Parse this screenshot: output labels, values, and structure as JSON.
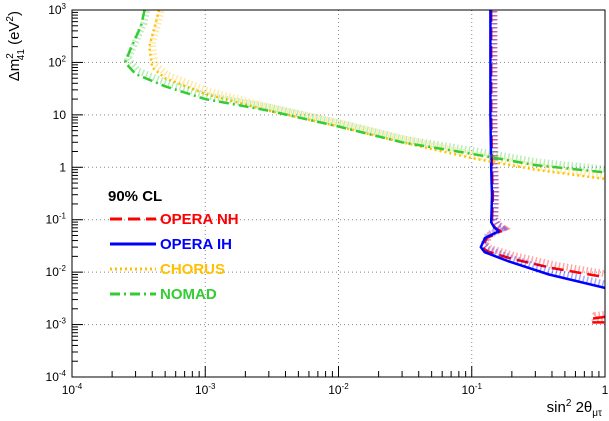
{
  "chart_data": {
    "type": "line",
    "xlabel": "sin² 2θμτ",
    "xlabel_parts": {
      "base": "sin",
      "sup": "2",
      "mid": " 2θ",
      "sub": "μτ"
    },
    "ylabel": "Δm²41 (eV²)",
    "ylabel_parts": {
      "base": "Δm",
      "sup": "2",
      "sub": "41",
      "unit": " (eV",
      "unit_sup": "2",
      "close": ")"
    },
    "xscale": "log",
    "yscale": "log",
    "xlim": [
      0.0001,
      1
    ],
    "ylim": [
      0.0001,
      1000
    ],
    "grid": true,
    "x_ticks": [
      {
        "value": 0.0001,
        "base": "10",
        "exp": "-4"
      },
      {
        "value": 0.001,
        "base": "10",
        "exp": "-3"
      },
      {
        "value": 0.01,
        "base": "10",
        "exp": "-2"
      },
      {
        "value": 0.1,
        "base": "10",
        "exp": "-1"
      },
      {
        "value": 1,
        "base": "1",
        "exp": ""
      }
    ],
    "y_ticks": [
      {
        "value": 0.0001,
        "base": "10",
        "exp": "-4"
      },
      {
        "value": 0.001,
        "base": "10",
        "exp": "-3"
      },
      {
        "value": 0.01,
        "base": "10",
        "exp": "-2"
      },
      {
        "value": 0.1,
        "base": "10",
        "exp": "-1"
      },
      {
        "value": 1,
        "base": "1",
        "exp": ""
      },
      {
        "value": 10,
        "base": "10",
        "exp": ""
      },
      {
        "value": 100,
        "base": "10",
        "exp": "2"
      },
      {
        "value": 1000,
        "base": "10",
        "exp": "3"
      }
    ],
    "legend": {
      "title": "90% CL",
      "placement": "middle-left",
      "entries": [
        {
          "label": "OPERA NH",
          "color": "#ff0000",
          "style": "dashed"
        },
        {
          "label": "OPERA IH",
          "color": "#0000ff",
          "style": "solid"
        },
        {
          "label": "CHORUS",
          "color": "#ffc000",
          "style": "dotted"
        },
        {
          "label": "NOMAD",
          "color": "#33cc33",
          "style": "dashdot"
        }
      ]
    },
    "series": [
      {
        "name": "OPERA NH",
        "color": "#ff0000",
        "style": "dashed",
        "x": [
          0.14,
          0.14,
          0.14,
          0.141,
          0.142,
          0.143,
          0.144,
          0.143,
          0.142,
          0.15,
          0.165,
          0.13,
          0.12,
          0.13,
          0.2,
          0.4,
          1.0
        ],
        "y": [
          1000,
          100,
          10,
          3,
          1,
          0.5,
          0.3,
          0.15,
          0.09,
          0.07,
          0.06,
          0.045,
          0.03,
          0.025,
          0.018,
          0.012,
          0.008
        ]
      },
      {
        "name": "OPERA NH (high Δm² island)",
        "color": "#ff0000",
        "style": "dashed",
        "x": [
          1.0,
          0.8,
          0.78,
          0.8,
          1.0
        ],
        "y": [
          0.0014,
          0.0013,
          0.0012,
          0.0011,
          0.0011
        ]
      },
      {
        "name": "OPERA IH",
        "color": "#0000ff",
        "style": "solid",
        "x": [
          0.138,
          0.138,
          0.138,
          0.139,
          0.14,
          0.141,
          0.142,
          0.141,
          0.14,
          0.148,
          0.16,
          0.126,
          0.117,
          0.125,
          0.19,
          0.38,
          1.0
        ],
        "y": [
          1000,
          100,
          10,
          3,
          1,
          0.5,
          0.3,
          0.15,
          0.09,
          0.07,
          0.06,
          0.045,
          0.03,
          0.024,
          0.016,
          0.009,
          0.005
        ]
      },
      {
        "name": "CHORUS",
        "color": "#ffc000",
        "style": "dotted",
        "x": [
          0.00045,
          0.00042,
          0.00038,
          0.0004,
          0.0005,
          0.001,
          0.003,
          0.01,
          0.03,
          0.1,
          0.3,
          1.0
        ],
        "y": [
          1000,
          500,
          200,
          80,
          50,
          25,
          12,
          6,
          3,
          1.5,
          0.9,
          0.6
        ]
      },
      {
        "name": "NOMAD",
        "color": "#33cc33",
        "style": "dashdot",
        "x": [
          0.00035,
          0.00033,
          0.00028,
          0.00025,
          0.0003,
          0.0005,
          0.001,
          0.003,
          0.01,
          0.03,
          0.1,
          0.3,
          1.0
        ],
        "y": [
          1000,
          500,
          200,
          100,
          60,
          35,
          20,
          12,
          6,
          3,
          1.8,
          1.1,
          0.8
        ]
      }
    ]
  }
}
